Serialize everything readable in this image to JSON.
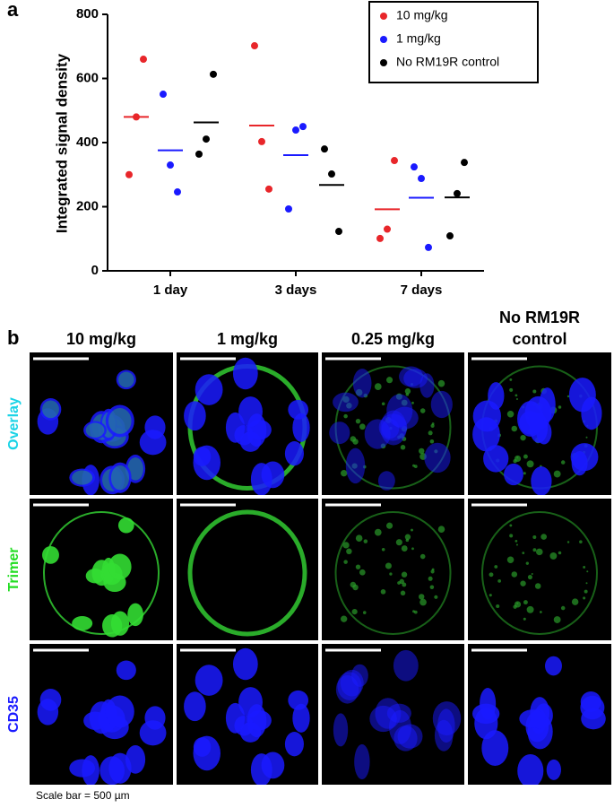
{
  "chart_data": {
    "type": "strip",
    "panel_label": "a",
    "y_label": "Integrated signal density",
    "categories": [
      "1 day",
      "3 days",
      "7 days"
    ],
    "ylim": [
      0,
      800
    ],
    "yticks": [
      0,
      200,
      400,
      600,
      800
    ],
    "legend_position": "upper right",
    "series": [
      {
        "name": "10 mg/kg",
        "color": "#e8262a",
        "points": [
          [
            660,
            480,
            300
          ],
          [
            702,
            403,
            255
          ],
          [
            344,
            130,
            101
          ]
        ],
        "means": [
          480,
          453,
          192
        ]
      },
      {
        "name": "1 mg/kg",
        "color": "#1a1aff",
        "points": [
          [
            551,
            330,
            246
          ],
          [
            450,
            439,
            193
          ],
          [
            324,
            288,
            73
          ]
        ],
        "means": [
          376,
          361,
          228
        ]
      },
      {
        "name": "No RM19R control",
        "color": "#000000",
        "points": [
          [
            613,
            411,
            364
          ],
          [
            380,
            302,
            123
          ],
          [
            338,
            241,
            109
          ]
        ],
        "means": [
          463,
          268,
          229
        ]
      }
    ]
  },
  "panel_b": {
    "panel_label": "b",
    "columns": [
      "10 mg/kg",
      "1 mg/kg",
      "0.25 mg/kg",
      "No RM19R control"
    ],
    "rows": [
      {
        "label": "Overlay",
        "color": "#19d3e6"
      },
      {
        "label": "Trimer",
        "color": "#22dd22"
      },
      {
        "label": "CD35",
        "color": "#1a1aff"
      }
    ],
    "caption": "Scale bar = 500 µm"
  }
}
